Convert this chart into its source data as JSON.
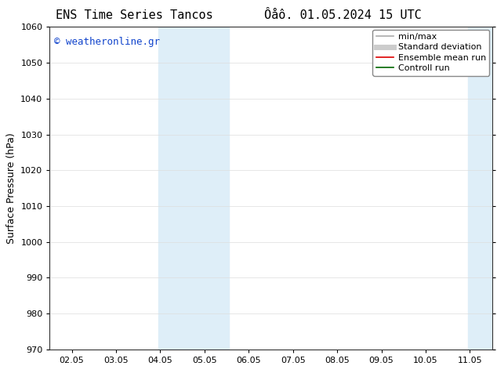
{
  "title_left": "ENS Time Series Tancos",
  "title_right": "Ôåô. 01.05.2024 15 UTC",
  "ylabel": "Surface Pressure (hPa)",
  "ylim": [
    970,
    1060
  ],
  "yticks": [
    970,
    980,
    990,
    1000,
    1010,
    1020,
    1030,
    1040,
    1050,
    1060
  ],
  "xtick_labels": [
    "02.05",
    "03.05",
    "04.05",
    "05.05",
    "06.05",
    "07.05",
    "08.05",
    "09.05",
    "10.05",
    "11.05"
  ],
  "xtick_positions": [
    0,
    1,
    2,
    3,
    4,
    5,
    6,
    7,
    8,
    9
  ],
  "xlim": [
    -0.5,
    9.5
  ],
  "shaded_bands": [
    {
      "x_start": 1.95,
      "x_end": 3.55,
      "color": "#deeef8"
    },
    {
      "x_start": 8.95,
      "x_end": 9.5,
      "color": "#deeef8"
    }
  ],
  "watermark": "© weatheronline.gr",
  "watermark_color": "#1144cc",
  "background_color": "#ffffff",
  "legend_items": [
    {
      "label": "min/max",
      "color": "#aaaaaa",
      "lw": 1.2,
      "style": "solid"
    },
    {
      "label": "Standard deviation",
      "color": "#cccccc",
      "lw": 5,
      "style": "solid"
    },
    {
      "label": "Ensemble mean run",
      "color": "#dd0000",
      "lw": 1.2,
      "style": "solid"
    },
    {
      "label": "Controll run",
      "color": "#006600",
      "lw": 1.2,
      "style": "solid"
    }
  ],
  "title_fontsize": 11,
  "tick_fontsize": 8,
  "ylabel_fontsize": 9,
  "watermark_fontsize": 9,
  "legend_fontsize": 8
}
